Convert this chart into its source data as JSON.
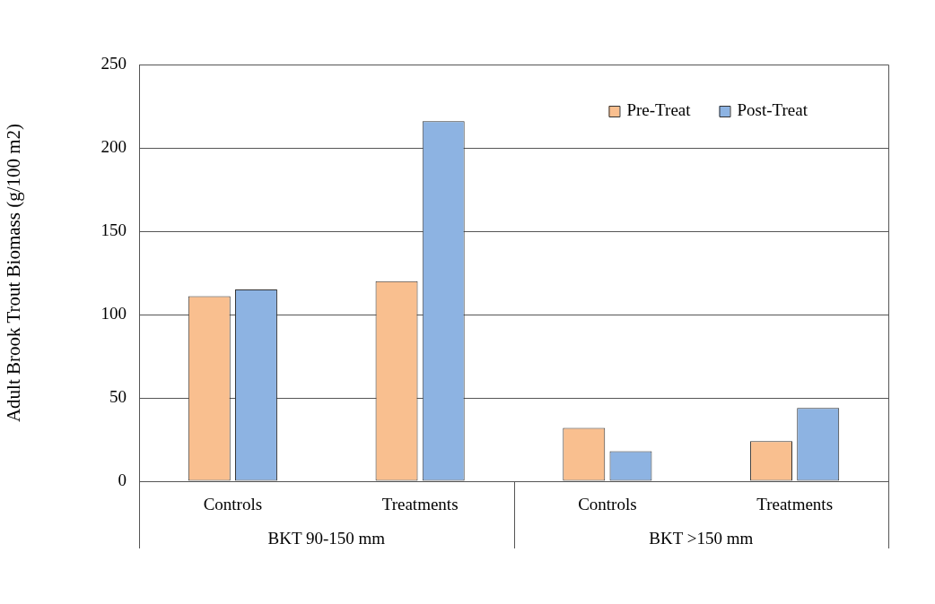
{
  "chart_data": {
    "type": "bar",
    "ylabel": "Adult Brook Trout Biomass (g/100 m2)",
    "categories": [
      "Controls",
      "Treatments",
      "Controls",
      "Treatments"
    ],
    "series": [
      {
        "name": "Pre-Treat",
        "color": "#f9bf8f",
        "values": [
          111,
          120,
          32,
          24
        ]
      },
      {
        "name": "Post-Treat",
        "color": "#8db3e2",
        "values": [
          115,
          216,
          18,
          44
        ]
      }
    ],
    "annotations": [
      "BKT 90-150 mm",
      "BKT >150 mm"
    ],
    "ylim": [
      0,
      250
    ],
    "yticks": [
      0,
      50,
      100,
      150,
      200,
      250
    ],
    "grid": "y",
    "legend": "top right"
  }
}
